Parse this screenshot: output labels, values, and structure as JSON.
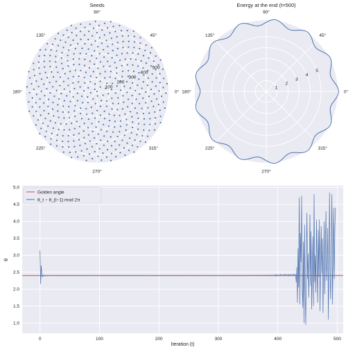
{
  "colors": {
    "panel_bg": "#EAEAF2",
    "grid": "#ffffff",
    "series_blue": "#4C72B0",
    "golden_red": "#C44E52",
    "text": "#222222"
  },
  "chart_data": [
    {
      "type": "scatter",
      "projection": "polar",
      "title": "Seeds",
      "angle_tick_labels": [
        "0°",
        "45°",
        "90°",
        "135°",
        "180°",
        "225°",
        "270°",
        "315°"
      ],
      "radial_tick_labels": [
        "100",
        "200",
        "300",
        "400",
        "500"
      ],
      "rlim": [
        0,
        560
      ],
      "n_points": 500,
      "pattern": "phyllotaxis, theta_i = i × golden angle (≈2.39996 rad), r_i = 25·sqrt(i)",
      "grid": true,
      "point_color": "#4C72B0"
    },
    {
      "type": "line",
      "projection": "polar",
      "title": "Energy at the end (t=500)",
      "angle_tick_labels": [
        "0°",
        "45°",
        "90°",
        "135°",
        "180°",
        "225°",
        "270°",
        "315°"
      ],
      "radial_tick_labels": [
        "1",
        "2",
        "3",
        "4",
        "5"
      ],
      "rlim": [
        0,
        6.5
      ],
      "curve_pattern": "r(θ) ≈ 6.3 + 0.28·cos(13θ), 13 lobes",
      "grid": true,
      "line_color": "#4C72B0"
    },
    {
      "type": "line",
      "title": "",
      "xlabel": "Iteration (t)",
      "ylabel": "θ",
      "xlim": [
        -30,
        510
      ],
      "ylim": [
        0.7,
        5.05
      ],
      "x_ticks": [
        0,
        100,
        200,
        300,
        400,
        500
      ],
      "y_ticks": [
        1.0,
        1.5,
        2.0,
        2.5,
        3.0,
        3.5,
        4.0,
        4.5,
        5.0
      ],
      "x_tick_labels": [
        "0",
        "100",
        "200",
        "300",
        "400",
        "500"
      ],
      "y_tick_labels": [
        "1.0",
        "1.5",
        "2.0",
        "2.5",
        "3.0",
        "3.5",
        "4.0",
        "4.5",
        "5.0"
      ],
      "legend_position": "top-left",
      "grid": true,
      "series": [
        {
          "name": "Golden angle",
          "kind": "hline",
          "y": 2.39996,
          "color": "#C44E52"
        },
        {
          "name": "θ_t − θ_{t−1} mod 2π",
          "kind": "line",
          "color": "#4C72B0",
          "x_range": [
            0,
            497
          ],
          "description": "spike to 3.14 at t≈0, dip to 2.15 at t≈1, settles ≈2.40 with small noise until t≈430, then large oscillations between ≈0.95 and ≈4.85",
          "keypoints": [
            [
              0,
              3.14
            ],
            [
              1,
              2.15
            ],
            [
              2,
              2.7
            ],
            [
              3,
              2.48
            ],
            [
              4,
              2.36
            ],
            [
              6,
              2.42
            ],
            [
              8,
              2.39
            ],
            [
              10,
              2.4
            ],
            [
              300,
              2.4
            ],
            [
              400,
              2.41
            ],
            [
              430,
              2.42
            ],
            [
              431,
              2.2
            ],
            [
              432,
              2.65
            ],
            [
              433,
              1.6
            ],
            [
              434,
              3.2
            ],
            [
              435,
              2.05
            ],
            [
              436,
              4.7
            ],
            [
              437,
              1.55
            ],
            [
              438,
              3.65
            ],
            [
              439,
              2.8
            ],
            [
              440,
              4.75
            ],
            [
              441,
              2.0
            ],
            [
              442,
              1.45
            ],
            [
              443,
              3.4
            ],
            [
              444,
              1.0
            ],
            [
              445,
              3.9
            ],
            [
              446,
              1.95
            ],
            [
              447,
              0.95
            ],
            [
              448,
              2.9
            ],
            [
              449,
              4.25
            ],
            [
              450,
              2.3
            ],
            [
              451,
              3.05
            ],
            [
              452,
              1.75
            ],
            [
              453,
              2.75
            ],
            [
              454,
              4.2
            ],
            [
              455,
              2.1
            ],
            [
              456,
              3.7
            ],
            [
              457,
              1.4
            ],
            [
              458,
              2.65
            ],
            [
              459,
              3.55
            ],
            [
              460,
              1.5
            ],
            [
              461,
              4.8
            ],
            [
              462,
              2.2
            ],
            [
              463,
              3.0
            ],
            [
              464,
              1.9
            ],
            [
              465,
              4.05
            ],
            [
              466,
              2.7
            ],
            [
              467,
              1.6
            ],
            [
              468,
              3.75
            ],
            [
              469,
              2.35
            ],
            [
              470,
              4.05
            ],
            [
              471,
              1.35
            ],
            [
              472,
              2.9
            ],
            [
              473,
              3.85
            ],
            [
              474,
              2.45
            ],
            [
              475,
              3.5
            ],
            [
              476,
              1.3
            ],
            [
              477,
              2.6
            ],
            [
              478,
              4.0
            ],
            [
              479,
              1.85
            ],
            [
              480,
              3.2
            ],
            [
              481,
              4.3
            ],
            [
              482,
              2.25
            ],
            [
              483,
              2.75
            ],
            [
              484,
              3.8
            ],
            [
              485,
              1.1
            ],
            [
              486,
              2.95
            ],
            [
              487,
              4.85
            ],
            [
              488,
              2.3
            ],
            [
              489,
              1.7
            ],
            [
              490,
              3.35
            ],
            [
              491,
              4.8
            ],
            [
              492,
              1.55
            ],
            [
              493,
              2.9
            ],
            [
              494,
              4.4
            ],
            [
              495,
              2.3
            ],
            [
              496,
              3.85
            ],
            [
              497,
              4.4
            ]
          ]
        }
      ]
    }
  ]
}
